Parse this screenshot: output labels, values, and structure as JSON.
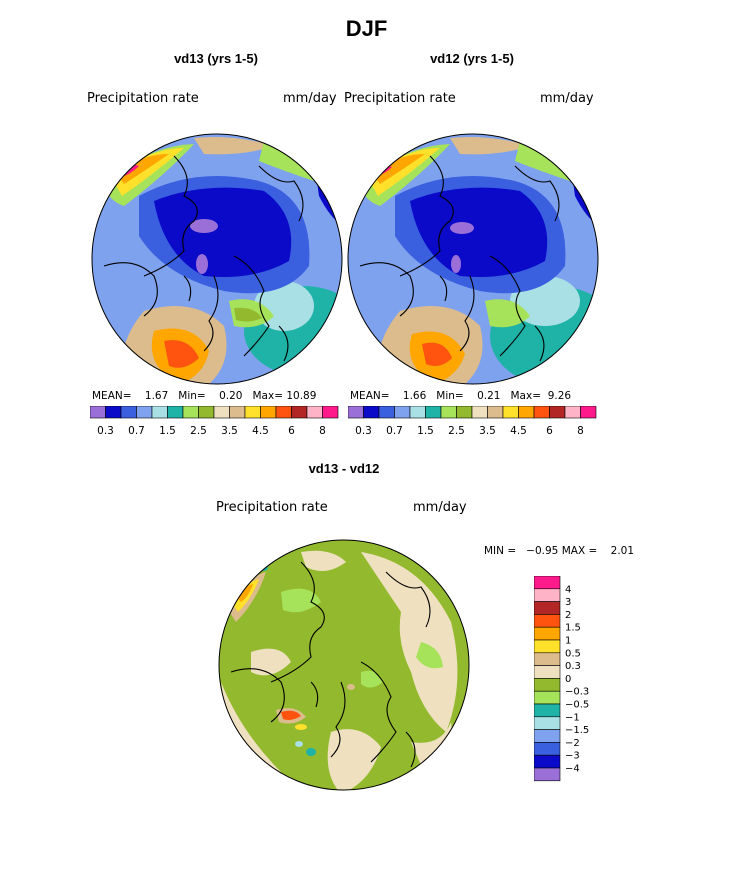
{
  "figure": {
    "title": "DJF"
  },
  "colors": {
    "abs_palette": [
      "#9a70d8",
      "#0a0ac8",
      "#3a60e0",
      "#7fa2ee",
      "#a9e0e6",
      "#1fb2a6",
      "#a6e35a",
      "#93ba2e",
      "#efe1bf",
      "#dcbc8c",
      "#ffe02a",
      "#ffa600",
      "#ff5410",
      "#b22626",
      "#ffb3c6",
      "#ff1a8c"
    ],
    "diff_palette": [
      "#ff1a8c",
      "#ffb3c6",
      "#b22626",
      "#ff5410",
      "#ffa600",
      "#ffe02a",
      "#dcbc8c",
      "#efe1bf",
      "#93ba2e",
      "#a6e35a",
      "#1fb2a6",
      "#a9e0e6",
      "#7fa2ee",
      "#3a60e0",
      "#0a0ac8",
      "#9a70d8"
    ]
  },
  "chart_data": [
    {
      "type": "heatmap",
      "title": "vd13 (yrs 1-5)",
      "variable": "Precipitation rate",
      "units": "mm/day",
      "projection": "north polar stereographic",
      "stats": {
        "mean_label": "MEAN=",
        "mean": "1.67",
        "min_label": "Min=",
        "min": "0.20",
        "max_label": "Max=",
        "max": "10.89"
      },
      "colorbar": {
        "orientation": "horizontal",
        "labels": [
          "0.3",
          "0.7",
          "1.5",
          "2.5",
          "3.5",
          "4.5",
          "6",
          "8"
        ]
      }
    },
    {
      "type": "heatmap",
      "title": "vd12 (yrs 1-5)",
      "variable": "Precipitation rate",
      "units": "mm/day",
      "projection": "north polar stereographic",
      "stats": {
        "mean_label": "MEAN=",
        "mean": "1.66",
        "min_label": "Min=",
        "min": "0.21",
        "max_label": "Max=",
        "max": "9.26"
      },
      "colorbar": {
        "orientation": "horizontal",
        "labels": [
          "0.3",
          "0.7",
          "1.5",
          "2.5",
          "3.5",
          "4.5",
          "6",
          "8"
        ]
      }
    },
    {
      "type": "heatmap",
      "title": "vd13 - vd12",
      "variable": "Precipitation rate",
      "units": "mm/day",
      "projection": "north polar stereographic",
      "stats": {
        "min_label": "MIN =",
        "min": "−0.95",
        "max_label": "MAX =",
        "max": "2.01"
      },
      "colorbar": {
        "orientation": "vertical",
        "labels": [
          "4",
          "3",
          "2",
          "1.5",
          "1",
          "0.5",
          "0.3",
          "0",
          "−0.3",
          "−0.5",
          "−1",
          "−1.5",
          "−2",
          "−3",
          "−4"
        ]
      }
    }
  ]
}
